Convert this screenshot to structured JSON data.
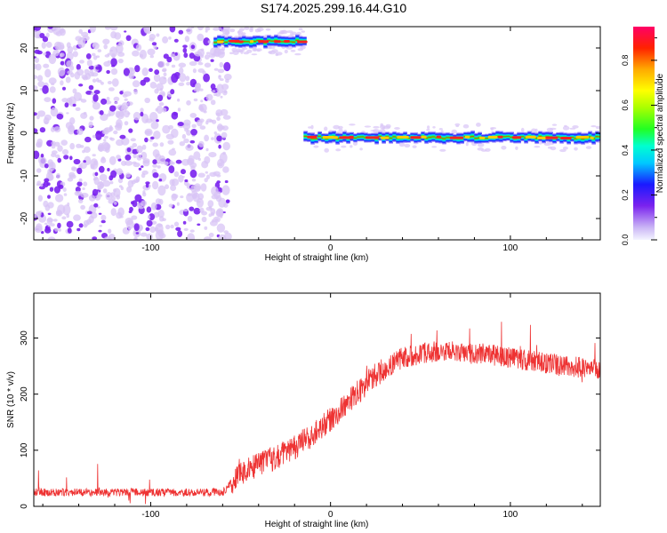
{
  "title": "S174.2025.299.16.44.G10",
  "colors": {
    "snr_line": "#ee3333",
    "dot_dark": "#7a22ee",
    "dot_light": "#d8c4f6",
    "axis": "#000000"
  },
  "chart_data": [
    {
      "type": "heatmap",
      "name": "spectrogram",
      "xlabel": "Height of straight line (km)",
      "ylabel": "Frequency (Hz)",
      "xlim": [
        -165,
        150
      ],
      "ylim": [
        -25,
        25
      ],
      "xticks": [
        -100,
        0,
        100
      ],
      "yticks": [
        -20,
        -10,
        0,
        10,
        20
      ],
      "noise_region_x": [
        -165,
        -60
      ],
      "segments": [
        {
          "name": "upper-track",
          "x_start": -65,
          "x_end": -15,
          "frequency": 21.5
        },
        {
          "name": "main-track",
          "x_start": -15,
          "x_end": 150,
          "frequency": -1.0
        }
      ],
      "colorbar": {
        "label": "Normalized spectral amplitude",
        "range": [
          0,
          0.95
        ],
        "ticks": [
          0.0,
          0.2,
          0.4,
          0.6,
          0.8
        ]
      }
    },
    {
      "type": "line",
      "name": "snr",
      "xlabel": "Height of straight line (km)",
      "ylabel": "SNR (10 * v/v)",
      "xlim": [
        -165,
        150
      ],
      "ylim": [
        0,
        380
      ],
      "xticks": [
        -100,
        0,
        100
      ],
      "yticks": [
        0,
        100,
        200,
        300
      ],
      "trend": [
        {
          "x": -165,
          "y": 25
        },
        {
          "x": -60,
          "y": 25
        },
        {
          "x": -50,
          "y": 60
        },
        {
          "x": -35,
          "y": 80
        },
        {
          "x": -20,
          "y": 105
        },
        {
          "x": -5,
          "y": 140
        },
        {
          "x": 10,
          "y": 185
        },
        {
          "x": 25,
          "y": 235
        },
        {
          "x": 40,
          "y": 265
        },
        {
          "x": 55,
          "y": 275
        },
        {
          "x": 70,
          "y": 275
        },
        {
          "x": 90,
          "y": 270
        },
        {
          "x": 110,
          "y": 260
        },
        {
          "x": 130,
          "y": 250
        },
        {
          "x": 150,
          "y": 245
        }
      ]
    }
  ]
}
